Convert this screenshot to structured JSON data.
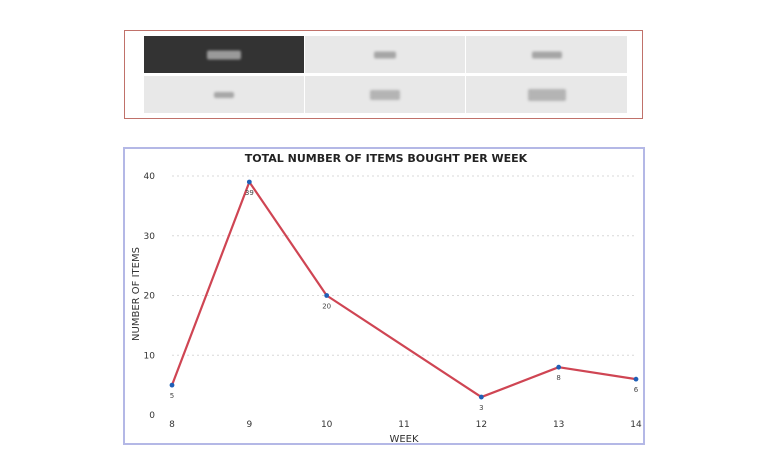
{
  "tiles": [
    {
      "active": true,
      "blur_color": "#9a9a9a",
      "blur_w": 34,
      "blur_h": 9
    },
    {
      "active": false,
      "blur_color": "#a6a6a6",
      "blur_w": 22,
      "blur_h": 7
    },
    {
      "active": false,
      "blur_color": "#a6a6a6",
      "blur_w": 30,
      "blur_h": 7
    },
    {
      "active": false,
      "blur_color": "#a6a6a6",
      "blur_w": 20,
      "blur_h": 6
    },
    {
      "active": false,
      "blur_color": "#b4b4b4",
      "blur_w": 30,
      "blur_h": 10
    },
    {
      "active": false,
      "blur_color": "#b4b4b4",
      "blur_w": 38,
      "blur_h": 12
    }
  ],
  "colors": {
    "line": "#cf4553",
    "point": "#1f5fb6",
    "grid": "#d8d8d8",
    "panel_border": "#b4b8e6",
    "tile_panel_border": "#c0716a"
  },
  "chart_data": {
    "type": "line",
    "title": "TOTAL NUMBER OF ITEMS BOUGHT PER WEEK",
    "xlabel": "WEEK",
    "ylabel": "NUMBER OF ITEMS",
    "x": [
      8,
      9,
      10,
      12,
      13,
      14
    ],
    "y": [
      5,
      39,
      20,
      3,
      8,
      6
    ],
    "data_labels": [
      "5",
      "39",
      "20",
      "3",
      "8",
      "6"
    ],
    "xticks": [
      "8",
      "9",
      "10",
      "11",
      "12",
      "13",
      "14"
    ],
    "yticks": [
      "0",
      "10",
      "20",
      "30",
      "40"
    ],
    "xlim": [
      8,
      14
    ],
    "ylim": [
      0,
      40
    ],
    "grid": true,
    "legend": false
  }
}
